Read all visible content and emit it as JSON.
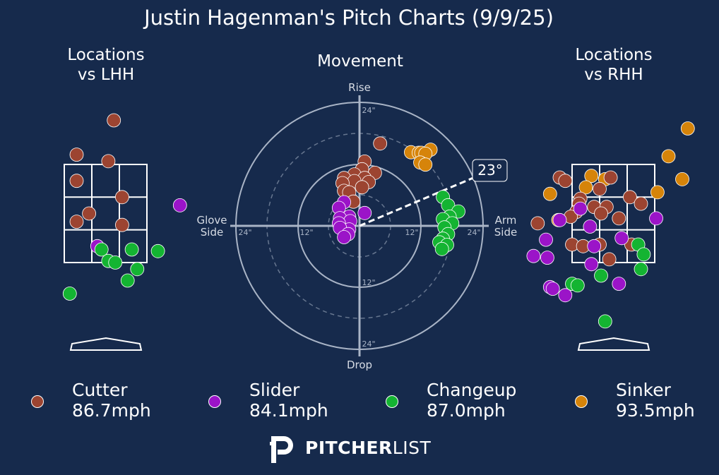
{
  "title": "Justin Hagenman's Pitch Charts (9/9/25)",
  "panels": {
    "lhh_title": "Locations\nvs LHH",
    "rhh_title": "Locations\nvs RHH",
    "movement_title": "Movement"
  },
  "movement_axes": {
    "rise": "Rise",
    "drop": "Drop",
    "glove_side": "Glove\nSide",
    "arm_side": "Arm\nSide",
    "tick_24_top": "24\"",
    "tick_12_bottom": "12\"",
    "tick_24_bottom": "24\"",
    "tick_24_left": "24\"",
    "tick_12_left": "12\"",
    "tick_12_right": "12\"",
    "tick_24_right": "24\"",
    "arm_angle_label": "23°"
  },
  "colors": {
    "background": "#162a4c",
    "Cutter": "#9c4431",
    "Slider": "#9b14c8",
    "Changeup": "#14b432",
    "Sinker": "#d6840a"
  },
  "legend": [
    {
      "pitch": "Cutter",
      "speed": "86.7mph"
    },
    {
      "pitch": "Slider",
      "speed": "84.1mph"
    },
    {
      "pitch": "Changeup",
      "speed": "87.0mph"
    },
    {
      "pitch": "Sinker",
      "speed": "93.5mph"
    }
  ],
  "logo": {
    "text_bold": "PITCHER",
    "text_light": "LIST",
    "icon": "pitcherlist-p-icon"
  },
  "chart_data": [
    {
      "type": "scatter",
      "name": "locations_vs_lhh",
      "x_unit": "plate-x (zone widths, 0=left edge, 3=right edge)",
      "points": [
        {
          "pitch": "Cutter",
          "x": 1.8,
          "y": 4.35
        },
        {
          "pitch": "Cutter",
          "x": 0.45,
          "y": 3.3
        },
        {
          "pitch": "Cutter",
          "x": 1.6,
          "y": 3.1
        },
        {
          "pitch": "Cutter",
          "x": 0.45,
          "y": 2.5
        },
        {
          "pitch": "Cutter",
          "x": 2.1,
          "y": 2.0
        },
        {
          "pitch": "Cutter",
          "x": 0.9,
          "y": 1.5
        },
        {
          "pitch": "Cutter",
          "x": 0.45,
          "y": 1.25
        },
        {
          "pitch": "Cutter",
          "x": 2.1,
          "y": 1.15
        },
        {
          "pitch": "Slider",
          "x": 4.2,
          "y": 1.75
        },
        {
          "pitch": "Slider",
          "x": 1.2,
          "y": 0.5
        },
        {
          "pitch": "Changeup",
          "x": 1.35,
          "y": 0.4
        },
        {
          "pitch": "Changeup",
          "x": 2.45,
          "y": 0.4
        },
        {
          "pitch": "Changeup",
          "x": 3.4,
          "y": 0.35
        },
        {
          "pitch": "Changeup",
          "x": 1.6,
          "y": 0.05
        },
        {
          "pitch": "Changeup",
          "x": 1.85,
          "y": 0.0
        },
        {
          "pitch": "Changeup",
          "x": 2.65,
          "y": -0.2
        },
        {
          "pitch": "Changeup",
          "x": 2.3,
          "y": -0.55
        },
        {
          "pitch": "Changeup",
          "x": 0.2,
          "y": -0.95
        }
      ]
    },
    {
      "type": "scatter",
      "name": "movement",
      "x_unit": "inches (arm side positive)",
      "y_unit": "inches (rise positive)",
      "xlim": [
        -24,
        24
      ],
      "ylim": [
        -24,
        24
      ],
      "points": [
        {
          "pitch": "Cutter",
          "x": 4,
          "y": 16
        },
        {
          "pitch": "Cutter",
          "x": 1,
          "y": 12.5
        },
        {
          "pitch": "Cutter",
          "x": 0.5,
          "y": 11
        },
        {
          "pitch": "Cutter",
          "x": -1,
          "y": 10
        },
        {
          "pitch": "Cutter",
          "x": 3,
          "y": 10.3
        },
        {
          "pitch": "Cutter",
          "x": 1,
          "y": 9.3
        },
        {
          "pitch": "Cutter",
          "x": -3,
          "y": 9.3
        },
        {
          "pitch": "Cutter",
          "x": -1,
          "y": 8.7
        },
        {
          "pitch": "Cutter",
          "x": 1.8,
          "y": 8.5
        },
        {
          "pitch": "Cutter",
          "x": -3.3,
          "y": 8.3
        },
        {
          "pitch": "Cutter",
          "x": 0.5,
          "y": 7.5
        },
        {
          "pitch": "Cutter",
          "x": -3,
          "y": 6.8
        },
        {
          "pitch": "Cutter",
          "x": -2,
          "y": 6.5
        },
        {
          "pitch": "Cutter",
          "x": -1.2,
          "y": 4.7
        },
        {
          "pitch": "Sinker",
          "x": 10,
          "y": 14.3
        },
        {
          "pitch": "Sinker",
          "x": 11.5,
          "y": 14.2
        },
        {
          "pitch": "Sinker",
          "x": 12,
          "y": 14.2
        },
        {
          "pitch": "Sinker",
          "x": 13.8,
          "y": 14.8
        },
        {
          "pitch": "Sinker",
          "x": 12.8,
          "y": 14.0
        },
        {
          "pitch": "Sinker",
          "x": 11.8,
          "y": 12.3
        },
        {
          "pitch": "Sinker",
          "x": 12.8,
          "y": 11.9
        },
        {
          "pitch": "Changeup",
          "x": 16.2,
          "y": 5.6
        },
        {
          "pitch": "Changeup",
          "x": 17.2,
          "y": 4.0
        },
        {
          "pitch": "Changeup",
          "x": 19.2,
          "y": 2.8
        },
        {
          "pitch": "Changeup",
          "x": 17.5,
          "y": 1.8
        },
        {
          "pitch": "Changeup",
          "x": 16.2,
          "y": 1.3
        },
        {
          "pitch": "Changeup",
          "x": 18,
          "y": 0.5
        },
        {
          "pitch": "Changeup",
          "x": 16.5,
          "y": -0.3
        },
        {
          "pitch": "Changeup",
          "x": 17.2,
          "y": -1.6
        },
        {
          "pitch": "Changeup",
          "x": 16.2,
          "y": -2.5
        },
        {
          "pitch": "Changeup",
          "x": 15.5,
          "y": -3.2
        },
        {
          "pitch": "Changeup",
          "x": 17,
          "y": -3.7
        },
        {
          "pitch": "Changeup",
          "x": 16,
          "y": -4.5
        },
        {
          "pitch": "Slider",
          "x": -3,
          "y": 4.6
        },
        {
          "pitch": "Slider",
          "x": 1,
          "y": 2.5
        },
        {
          "pitch": "Slider",
          "x": -4,
          "y": 3.5
        },
        {
          "pitch": "Slider",
          "x": -2,
          "y": 1.8
        },
        {
          "pitch": "Slider",
          "x": -3.8,
          "y": 1.5
        },
        {
          "pitch": "Slider",
          "x": -1.8,
          "y": 0.9
        },
        {
          "pitch": "Slider",
          "x": -4,
          "y": 0.5
        },
        {
          "pitch": "Slider",
          "x": -2,
          "y": -0.7
        },
        {
          "pitch": "Slider",
          "x": -3.8,
          "y": -0.4
        },
        {
          "pitch": "Slider",
          "x": -2.2,
          "y": -1.6
        },
        {
          "pitch": "Slider",
          "x": -3,
          "y": -2.2
        }
      ]
    },
    {
      "type": "scatter",
      "name": "locations_vs_rhh",
      "x_unit": "plate-x (zone widths, 0=left edge, 3=right edge)",
      "points": [
        {
          "pitch": "Sinker",
          "x": 4.2,
          "y": 4.1
        },
        {
          "pitch": "Sinker",
          "x": 3.5,
          "y": 3.25
        },
        {
          "pitch": "Sinker",
          "x": 4.0,
          "y": 2.55
        },
        {
          "pitch": "Sinker",
          "x": 0.7,
          "y": 2.65
        },
        {
          "pitch": "Sinker",
          "x": 1.2,
          "y": 2.55
        },
        {
          "pitch": "Sinker",
          "x": 0.5,
          "y": 2.3
        },
        {
          "pitch": "Sinker",
          "x": 3.1,
          "y": 2.15
        },
        {
          "pitch": "Sinker",
          "x": -0.8,
          "y": 2.1
        },
        {
          "pitch": "Sinker",
          "x": -0.5,
          "y": 1.3
        },
        {
          "pitch": "Cutter",
          "x": -0.45,
          "y": 2.6
        },
        {
          "pitch": "Cutter",
          "x": -0.25,
          "y": 2.5
        },
        {
          "pitch": "Cutter",
          "x": 1.4,
          "y": 2.6
        },
        {
          "pitch": "Cutter",
          "x": 1.0,
          "y": 2.25
        },
        {
          "pitch": "Cutter",
          "x": 0.3,
          "y": 1.95
        },
        {
          "pitch": "Cutter",
          "x": 2.1,
          "y": 2.0
        },
        {
          "pitch": "Cutter",
          "x": 2.5,
          "y": 1.8
        },
        {
          "pitch": "Cutter",
          "x": -1.25,
          "y": 1.2
        },
        {
          "pitch": "Cutter",
          "x": 0.25,
          "y": 1.8
        },
        {
          "pitch": "Cutter",
          "x": 0.8,
          "y": 1.7
        },
        {
          "pitch": "Cutter",
          "x": 1.25,
          "y": 1.7
        },
        {
          "pitch": "Cutter",
          "x": 0.15,
          "y": 1.55
        },
        {
          "pitch": "Cutter",
          "x": 1.05,
          "y": 1.5
        },
        {
          "pitch": "Cutter",
          "x": -0.05,
          "y": 1.4
        },
        {
          "pitch": "Cutter",
          "x": 1.7,
          "y": 1.35
        },
        {
          "pitch": "Cutter",
          "x": 0.0,
          "y": 0.55
        },
        {
          "pitch": "Cutter",
          "x": 0.4,
          "y": 0.5
        },
        {
          "pitch": "Cutter",
          "x": 1.0,
          "y": 0.55
        },
        {
          "pitch": "Cutter",
          "x": 2.15,
          "y": 0.55
        },
        {
          "pitch": "Cutter",
          "x": 1.35,
          "y": 0.1
        },
        {
          "pitch": "Slider",
          "x": 0.3,
          "y": 1.65
        },
        {
          "pitch": "Slider",
          "x": -0.45,
          "y": 1.3
        },
        {
          "pitch": "Slider",
          "x": 3.05,
          "y": 1.35
        },
        {
          "pitch": "Slider",
          "x": 0.65,
          "y": 1.1
        },
        {
          "pitch": "Slider",
          "x": -0.95,
          "y": 0.7
        },
        {
          "pitch": "Slider",
          "x": 1.8,
          "y": 0.75
        },
        {
          "pitch": "Slider",
          "x": 0.8,
          "y": 0.5
        },
        {
          "pitch": "Slider",
          "x": -0.9,
          "y": 0.15
        },
        {
          "pitch": "Slider",
          "x": -1.4,
          "y": 0.2
        },
        {
          "pitch": "Slider",
          "x": 0.7,
          "y": -0.05
        },
        {
          "pitch": "Slider",
          "x": -0.8,
          "y": -0.75
        },
        {
          "pitch": "Slider",
          "x": -0.7,
          "y": -0.8
        },
        {
          "pitch": "Slider",
          "x": 1.7,
          "y": -0.65
        },
        {
          "pitch": "Slider",
          "x": -0.25,
          "y": -1.0
        },
        {
          "pitch": "Changeup",
          "x": 2.4,
          "y": 0.55
        },
        {
          "pitch": "Changeup",
          "x": 2.6,
          "y": 0.25
        },
        {
          "pitch": "Changeup",
          "x": 2.5,
          "y": -0.2
        },
        {
          "pitch": "Changeup",
          "x": 1.05,
          "y": -0.4
        },
        {
          "pitch": "Changeup",
          "x": 0.0,
          "y": -0.65
        },
        {
          "pitch": "Changeup",
          "x": 0.2,
          "y": -0.7
        },
        {
          "pitch": "Changeup",
          "x": 1.2,
          "y": -1.8
        }
      ]
    }
  ]
}
